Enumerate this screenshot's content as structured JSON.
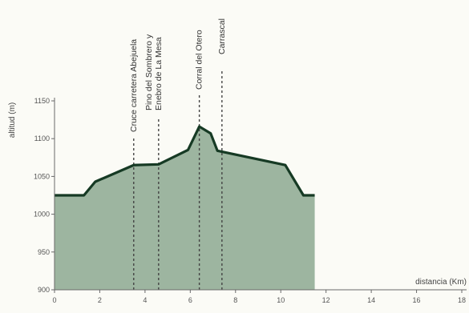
{
  "chart_data": {
    "type": "area",
    "xlabel": "distancia (Km)",
    "ylabel": "altitud (m)",
    "xlim": [
      0,
      18
    ],
    "ylim": [
      900,
      1150
    ],
    "x_ticks": [
      "0",
      "2",
      "4",
      "6",
      "8",
      "10",
      "12",
      "14",
      "16",
      "18"
    ],
    "y_ticks": [
      "900",
      "950",
      "1000",
      "1050",
      "1100",
      "1150"
    ],
    "grid": false,
    "series": [
      {
        "x": [
          0,
          1.3,
          1.8,
          3.5,
          4.6,
          5.9,
          6.4,
          6.9,
          7.2,
          10.2,
          11.0,
          11.5
        ],
        "y": [
          1025,
          1025,
          1043,
          1065,
          1066,
          1085,
          1116,
          1107,
          1084,
          1065,
          1025,
          1025
        ]
      }
    ],
    "annotations": [
      {
        "x": 3.5,
        "lines": [
          "Cruce carretera Abejuela"
        ]
      },
      {
        "x": 4.6,
        "lines": [
          "Pino del Sombrero y",
          "Enebro de La Mesa"
        ]
      },
      {
        "x": 6.4,
        "lines": [
          "Corral del Otero"
        ]
      },
      {
        "x": 7.4,
        "lines": [
          "Carrascal"
        ]
      }
    ],
    "colors": {
      "fill": "#9db5a0",
      "line": "#163a24",
      "axis": "#6a6a6a",
      "marker": "#444444"
    }
  }
}
